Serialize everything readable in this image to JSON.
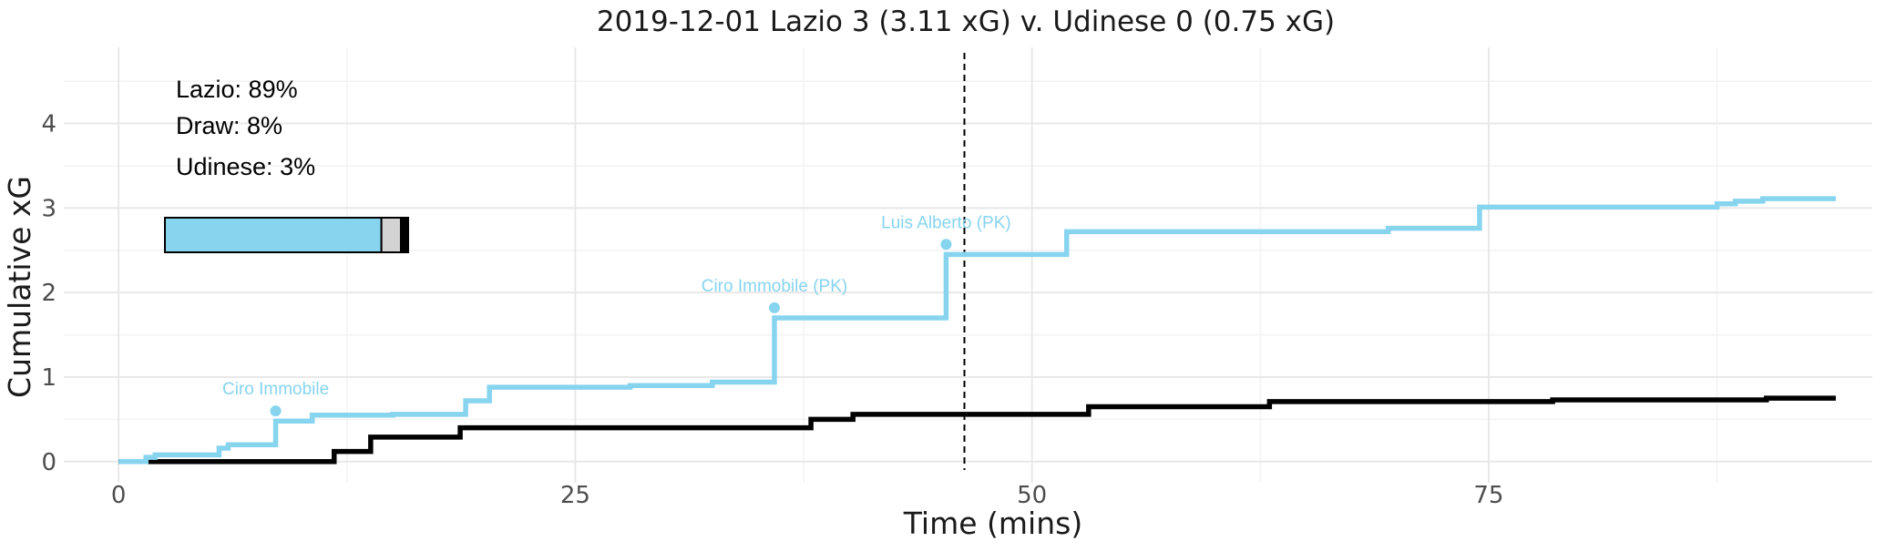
{
  "colors": {
    "home": "#87d4ef",
    "away": "#000000",
    "draw": "#d3d3d3",
    "grid_major": "#e8e8e8",
    "grid_minor": "#f3f3f3"
  },
  "probabilities": {
    "lines": [
      "Lazio: 89%",
      "Draw: 8%",
      "Udinese: 3%"
    ],
    "values": {
      "home": 0.89,
      "draw": 0.08,
      "away": 0.03
    }
  },
  "chart_data": {
    "type": "line",
    "step": true,
    "title": "2019-12-01 Lazio 3 (3.11 xG) v. Udinese 0 (0.75 xG)",
    "xlabel": "Time (mins)",
    "ylabel": "Cumulative xG",
    "xlim": [
      -3,
      96
    ],
    "ylim": [
      -0.25,
      4.9
    ],
    "x_ticks": [
      0,
      25,
      50,
      75
    ],
    "y_ticks": [
      0,
      1,
      2,
      3,
      4
    ],
    "grid": true,
    "halftime_line_x": 46.3,
    "series": [
      {
        "team": "home",
        "points": [
          [
            0,
            0
          ],
          [
            1.5,
            0.05
          ],
          [
            2,
            0.08
          ],
          [
            5.5,
            0.16
          ],
          [
            6,
            0.2
          ],
          [
            8.6,
            0.48
          ],
          [
            10.6,
            0.55
          ],
          [
            15,
            0.56
          ],
          [
            19,
            0.72
          ],
          [
            20.3,
            0.88
          ],
          [
            28,
            0.9
          ],
          [
            32.5,
            0.94
          ],
          [
            35.9,
            1.7
          ],
          [
            45.3,
            2.45
          ],
          [
            51.9,
            2.72
          ],
          [
            69.5,
            2.76
          ],
          [
            74.5,
            3.01
          ],
          [
            87.5,
            3.05
          ],
          [
            88.5,
            3.08
          ],
          [
            90,
            3.11
          ],
          [
            94,
            3.11
          ]
        ]
      },
      {
        "team": "away",
        "points": [
          [
            0,
            0
          ],
          [
            11.8,
            0.12
          ],
          [
            13.8,
            0.29
          ],
          [
            18.7,
            0.4
          ],
          [
            37.9,
            0.5
          ],
          [
            40.2,
            0.56
          ],
          [
            53.1,
            0.65
          ],
          [
            63,
            0.71
          ],
          [
            78.5,
            0.73
          ],
          [
            90.2,
            0.75
          ],
          [
            94,
            0.75
          ]
        ]
      }
    ],
    "goals": [
      {
        "label": "Ciro Immobile",
        "x": 8.6,
        "y": 0.6
      },
      {
        "label": "Ciro Immobile (PK)",
        "x": 35.9,
        "y": 1.82
      },
      {
        "label": "Luis Alberto (PK)",
        "x": 45.3,
        "y": 2.57
      }
    ]
  }
}
